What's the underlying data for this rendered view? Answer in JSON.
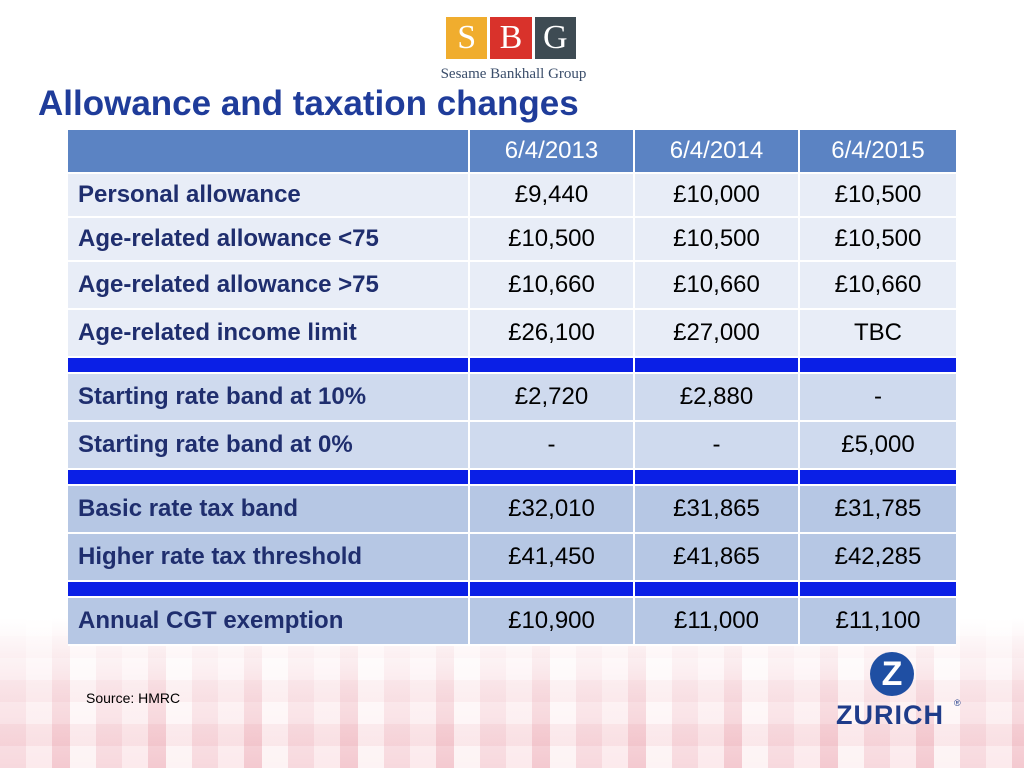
{
  "logo": {
    "letters": [
      "S",
      "B",
      "G"
    ],
    "name": "Sesame Bankhall Group"
  },
  "title": "Allowance and taxation changes",
  "table": {
    "headers": [
      "",
      "6/4/2013",
      "6/4/2014",
      "6/4/2015"
    ],
    "rows": [
      {
        "label": "Personal allowance",
        "values": [
          "£9,440",
          "£10,000",
          "£10,500"
        ]
      },
      {
        "label": "Age-related allowance <75",
        "values": [
          "£10,500",
          "£10,500",
          "£10,500"
        ]
      },
      {
        "label": "Age-related allowance >75",
        "values": [
          "£10,660",
          "£10,660",
          "£10,660"
        ]
      },
      {
        "label": "Age-related income limit",
        "values": [
          "£26,100",
          "£27,000",
          "TBC"
        ]
      },
      {
        "label": "Starting rate band at 10%",
        "values": [
          "£2,720",
          "£2,880",
          "-"
        ]
      },
      {
        "label": "Starting rate band at 0%",
        "values": [
          "-",
          "-",
          "£5,000"
        ]
      },
      {
        "label": "Basic rate tax band",
        "values": [
          "£32,010",
          "£31,865",
          "£31,785"
        ]
      },
      {
        "label": "Higher rate tax threshold",
        "values": [
          "£41,450",
          "£41,865",
          "£42,285"
        ]
      },
      {
        "label": "Annual CGT exemption",
        "values": [
          "£10,900",
          "£11,000",
          "£11,100"
        ]
      }
    ]
  },
  "source": "Source: HMRC",
  "zurich": {
    "mark": "Z",
    "word": "ZURICH",
    "reg": "®"
  },
  "colors": {
    "title": "#1f3c9a",
    "header_bg": "#5b83c3",
    "separator": "#0a1fe6",
    "row_light": "#e8edf7",
    "row_mid": "#cfdaee",
    "row_dark": "#b6c7e4"
  }
}
